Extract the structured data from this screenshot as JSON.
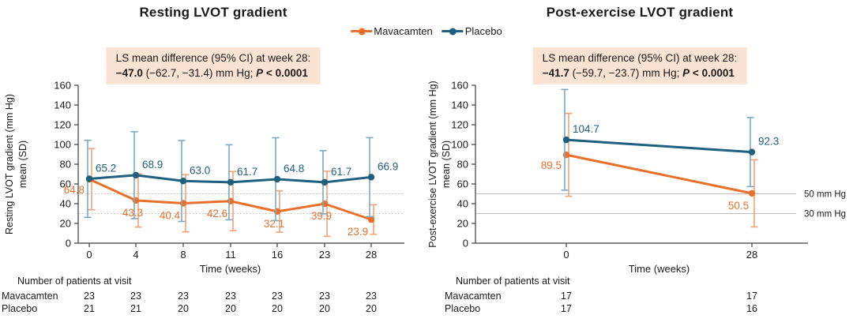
{
  "colors": {
    "mavacamten": "#E8702A",
    "mavacamten_light": "#F2A476",
    "placebo": "#1F607F",
    "placebo_light": "#7CA9C4",
    "annotation_bg": "#FBE3D4",
    "ref_line": "#BFBFBF",
    "axis": "#3D3D3D",
    "text": "#1A1A1A"
  },
  "legend": {
    "items": [
      {
        "label": "Mavacamten",
        "color_key": "mavacamten"
      },
      {
        "label": "Placebo",
        "color_key": "placebo"
      }
    ]
  },
  "panels": [
    {
      "annotation": {
        "line1": "LS mean difference (95% CI) at week 28:",
        "diff": "−47.0",
        "ci": " (−62.7, −31.4) mm Hg; ",
        "p_label": "P",
        "p_rest": " < 0.0001"
      }
    },
    {
      "annotation": {
        "line1": "LS mean difference (95% CI) at week 28:",
        "diff": "−41.7",
        "ci": " (−59.7, −23.7) mm Hg; ",
        "p_label": "P",
        "p_rest": " < 0.0001"
      }
    }
  ],
  "chart_data": [
    {
      "type": "line",
      "title": "Resting LVOT gradient",
      "xlabel": "Time (weeks)",
      "ylabel": "Resting LVOT gradient (mm Hg) mean (SD)",
      "ylabel_lines": [
        "Resting LVOT gradient (mm Hg)",
        "mean (SD)"
      ],
      "x": [
        "0",
        "4",
        "8",
        "11",
        "16",
        "23",
        "28"
      ],
      "x_type": "categorical",
      "ylim": [
        0,
        160
      ],
      "ytick_step": 20,
      "grid": false,
      "error_bars": "±SD (estimated from whiskers)",
      "legend_position": "top-center-shared",
      "series": [
        {
          "name": "Mavacamten",
          "color_key": "mavacamten",
          "light_key": "mavacamten_light",
          "values": [
            64.8,
            43.3,
            40.4,
            42.6,
            32.1,
            39.9,
            23.9
          ],
          "sd": [
            31,
            27,
            29,
            30,
            21,
            33,
            15
          ],
          "labels": [
            "64.8",
            "43.3",
            "40.4",
            "42.6",
            "32.1",
            "39.9",
            "23.9"
          ],
          "label_pos": [
            "left",
            "below",
            "below-left",
            "below-left",
            "below",
            "below",
            "below-left"
          ]
        },
        {
          "name": "Placebo",
          "color_key": "placebo",
          "light_key": "placebo_light",
          "values": [
            65.2,
            68.9,
            63.0,
            61.7,
            64.8,
            61.7,
            66.9
          ],
          "sd": [
            39,
            44,
            41,
            38,
            42,
            32,
            40
          ],
          "labels": [
            "65.2",
            "68.9",
            "63.0",
            "61.7",
            "64.8",
            "61.7",
            "66.9"
          ],
          "label_pos": [
            "above",
            "above",
            "above",
            "above",
            "above",
            "above",
            "above"
          ]
        }
      ],
      "ref_lines": [
        {
          "y": 50,
          "style": "dotted",
          "label": ""
        },
        {
          "y": 30,
          "style": "dotted",
          "label": ""
        }
      ],
      "patients": {
        "header": "Number of patients at visit",
        "rows": [
          {
            "label": "Mavacamten",
            "counts": [
              "23",
              "23",
              "23",
              "23",
              "23",
              "23",
              "23"
            ]
          },
          {
            "label": "Placebo",
            "counts": [
              "21",
              "21",
              "20",
              "20",
              "20",
              "20",
              "20"
            ]
          }
        ]
      }
    },
    {
      "type": "line",
      "title": "Post-exercise LVOT gradient",
      "xlabel": "Time (weeks)",
      "ylabel": "Post-exercise LVOT gradient (mm Hg) mean (SD)",
      "ylabel_lines": [
        "Post-exercise LVOT gradient (mm Hg)",
        "mean (SD)"
      ],
      "x": [
        "0",
        "28"
      ],
      "x_type": "categorical",
      "ylim": [
        0,
        160
      ],
      "ytick_step": 20,
      "grid": false,
      "error_bars": "±SD (estimated from whiskers)",
      "legend_position": "top-center-shared",
      "series": [
        {
          "name": "Mavacamten",
          "color_key": "mavacamten",
          "light_key": "mavacamten_light",
          "values": [
            89.5,
            50.5
          ],
          "sd": [
            42,
            34
          ],
          "labels": [
            "89.5",
            "50.5"
          ],
          "label_pos": [
            "left",
            "below-left"
          ]
        },
        {
          "name": "Placebo",
          "color_key": "placebo",
          "light_key": "placebo_light",
          "values": [
            104.7,
            92.3
          ],
          "sd": [
            51,
            35
          ],
          "labels": [
            "104.7",
            "92.3"
          ],
          "label_pos": [
            "above",
            "above"
          ]
        }
      ],
      "ref_lines": [
        {
          "y": 50,
          "style": "solid",
          "label": "50 mm Hg"
        },
        {
          "y": 30,
          "style": "solid",
          "label": "30 mm Hg"
        }
      ],
      "patients": {
        "header": "Number of patients at visit",
        "rows": [
          {
            "label": "Mavacamten",
            "counts": [
              "17",
              "17"
            ]
          },
          {
            "label": "Placebo",
            "counts": [
              "17",
              "16"
            ]
          }
        ]
      }
    }
  ]
}
